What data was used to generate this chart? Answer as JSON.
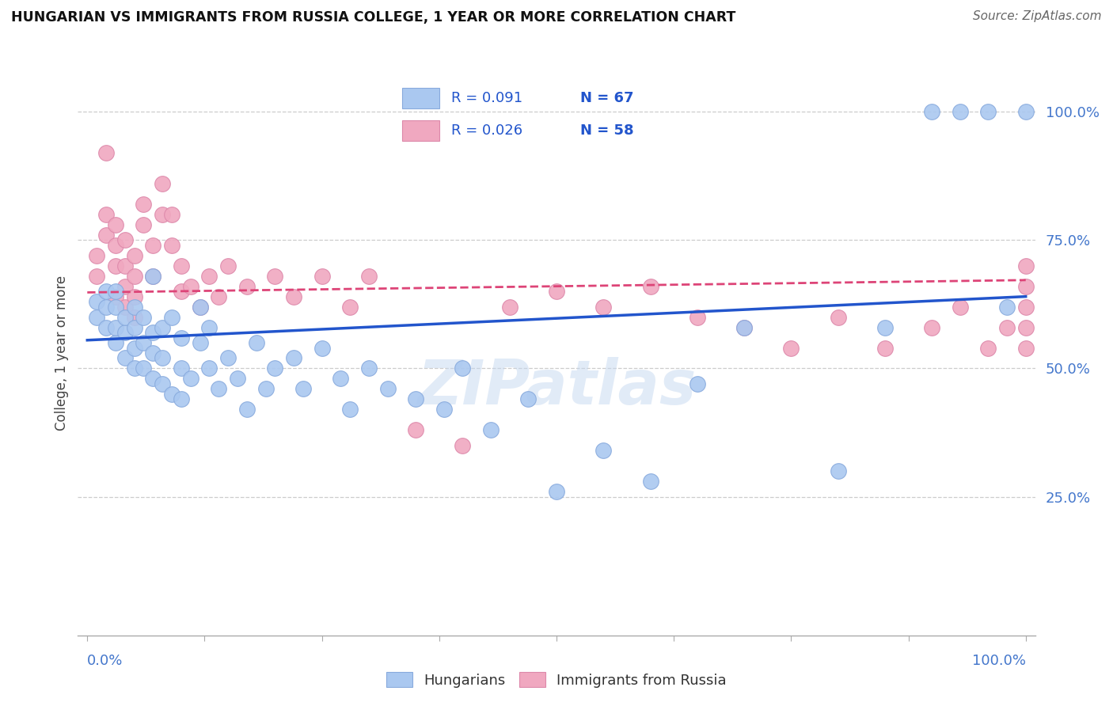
{
  "title": "HUNGARIAN VS IMMIGRANTS FROM RUSSIA COLLEGE, 1 YEAR OR MORE CORRELATION CHART",
  "source": "Source: ZipAtlas.com",
  "ylabel": "College, 1 year or more",
  "legend_blue_R": "R = 0.091",
  "legend_blue_N": "N = 67",
  "legend_pink_R": "R = 0.026",
  "legend_pink_N": "N = 58",
  "blue_color": "#aac8f0",
  "blue_edge_color": "#88aadd",
  "blue_line_color": "#2255cc",
  "pink_color": "#f0a8c0",
  "pink_edge_color": "#dd88aa",
  "pink_line_color": "#dd4477",
  "watermark": "ZIPatlas",
  "blue_scatter_x": [
    0.01,
    0.01,
    0.02,
    0.02,
    0.02,
    0.03,
    0.03,
    0.03,
    0.03,
    0.04,
    0.04,
    0.04,
    0.05,
    0.05,
    0.05,
    0.05,
    0.06,
    0.06,
    0.06,
    0.07,
    0.07,
    0.07,
    0.07,
    0.08,
    0.08,
    0.08,
    0.09,
    0.09,
    0.1,
    0.1,
    0.1,
    0.11,
    0.12,
    0.12,
    0.13,
    0.13,
    0.14,
    0.15,
    0.16,
    0.17,
    0.18,
    0.19,
    0.2,
    0.22,
    0.23,
    0.25,
    0.27,
    0.28,
    0.3,
    0.32,
    0.35,
    0.38,
    0.4,
    0.43,
    0.47,
    0.5,
    0.55,
    0.6,
    0.65,
    0.7,
    0.8,
    0.85,
    0.9,
    0.93,
    0.96,
    0.98,
    1.0
  ],
  "blue_scatter_y": [
    0.6,
    0.63,
    0.58,
    0.62,
    0.65,
    0.55,
    0.58,
    0.62,
    0.65,
    0.52,
    0.57,
    0.6,
    0.5,
    0.54,
    0.58,
    0.62,
    0.5,
    0.55,
    0.6,
    0.48,
    0.53,
    0.57,
    0.68,
    0.47,
    0.52,
    0.58,
    0.45,
    0.6,
    0.44,
    0.5,
    0.56,
    0.48,
    0.55,
    0.62,
    0.5,
    0.58,
    0.46,
    0.52,
    0.48,
    0.42,
    0.55,
    0.46,
    0.5,
    0.52,
    0.46,
    0.54,
    0.48,
    0.42,
    0.5,
    0.46,
    0.44,
    0.42,
    0.5,
    0.38,
    0.44,
    0.26,
    0.34,
    0.28,
    0.47,
    0.58,
    0.3,
    0.58,
    1.0,
    1.0,
    1.0,
    0.62,
    1.0
  ],
  "pink_scatter_x": [
    0.01,
    0.01,
    0.02,
    0.02,
    0.02,
    0.03,
    0.03,
    0.03,
    0.03,
    0.04,
    0.04,
    0.04,
    0.04,
    0.05,
    0.05,
    0.05,
    0.05,
    0.06,
    0.06,
    0.07,
    0.07,
    0.08,
    0.08,
    0.09,
    0.09,
    0.1,
    0.1,
    0.11,
    0.12,
    0.13,
    0.14,
    0.15,
    0.17,
    0.2,
    0.22,
    0.25,
    0.28,
    0.3,
    0.35,
    0.4,
    0.45,
    0.5,
    0.55,
    0.6,
    0.65,
    0.7,
    0.75,
    0.8,
    0.85,
    0.9,
    0.93,
    0.96,
    0.98,
    1.0,
    1.0,
    1.0,
    1.0,
    1.0
  ],
  "pink_scatter_y": [
    0.68,
    0.72,
    0.76,
    0.8,
    0.92,
    0.64,
    0.7,
    0.74,
    0.78,
    0.62,
    0.66,
    0.7,
    0.75,
    0.6,
    0.64,
    0.68,
    0.72,
    0.78,
    0.82,
    0.68,
    0.74,
    0.8,
    0.86,
    0.74,
    0.8,
    0.65,
    0.7,
    0.66,
    0.62,
    0.68,
    0.64,
    0.7,
    0.66,
    0.68,
    0.64,
    0.68,
    0.62,
    0.68,
    0.38,
    0.35,
    0.62,
    0.65,
    0.62,
    0.66,
    0.6,
    0.58,
    0.54,
    0.6,
    0.54,
    0.58,
    0.62,
    0.54,
    0.58,
    0.54,
    0.58,
    0.62,
    0.66,
    0.7
  ],
  "blue_line_x0": 0.0,
  "blue_line_x1": 1.0,
  "blue_line_y0": 0.555,
  "blue_line_y1": 0.64,
  "pink_line_x0": 0.0,
  "pink_line_x1": 1.0,
  "pink_line_y0": 0.648,
  "pink_line_y1": 0.672,
  "xlim": [
    0.0,
    1.0
  ],
  "ylim": [
    0.0,
    1.0
  ],
  "yticks": [
    0.25,
    0.5,
    0.75,
    1.0
  ],
  "ytick_labels": [
    "25.0%",
    "50.0%",
    "75.0%",
    "100.0%"
  ]
}
